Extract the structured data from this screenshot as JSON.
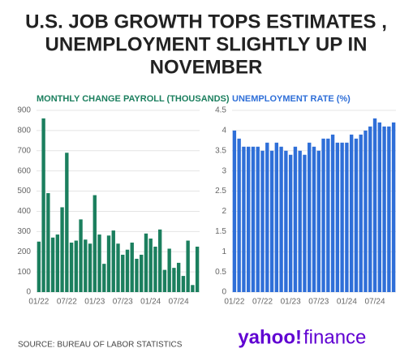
{
  "title_lines": [
    "U.S. JOB GROWTH TOPS ESTIMATES ,",
    "UNEMPLOYMENT SLIGHTLY UP IN",
    "NOVEMBER"
  ],
  "chart_data": [
    {
      "type": "bar",
      "title": "MONTHLY CHANGE PAYROLL (THOUSANDS)",
      "color": "#1b7f5e",
      "title_color": "#1b7f5e",
      "categories": [
        "01/22",
        null,
        null,
        null,
        null,
        null,
        "07/22",
        null,
        null,
        null,
        null,
        null,
        "01/23",
        null,
        null,
        null,
        null,
        null,
        "07/23",
        null,
        null,
        null,
        null,
        null,
        "01/24",
        null,
        null,
        null,
        null,
        null,
        "07/24",
        null,
        null,
        null,
        null
      ],
      "values": [
        250,
        860,
        490,
        270,
        285,
        420,
        690,
        245,
        255,
        360,
        260,
        240,
        480,
        285,
        140,
        280,
        305,
        240,
        185,
        210,
        245,
        165,
        185,
        290,
        265,
        225,
        310,
        110,
        215,
        120,
        145,
        80,
        255,
        35,
        225
      ],
      "ylim": [
        0,
        900
      ],
      "yticks": [
        0,
        100,
        200,
        300,
        400,
        500,
        600,
        700,
        800,
        900
      ],
      "grid": true
    },
    {
      "type": "bar",
      "title": "UNEMPLOYMENT RATE (%)",
      "color": "#2f6fd8",
      "title_color": "#2f6fd8",
      "categories": [
        "01/22",
        null,
        null,
        null,
        null,
        null,
        "07/22",
        null,
        null,
        null,
        null,
        null,
        "01/23",
        null,
        null,
        null,
        null,
        null,
        "07/23",
        null,
        null,
        null,
        null,
        null,
        "01/24",
        null,
        null,
        null,
        null,
        null,
        "07/24",
        null,
        null,
        null,
        null
      ],
      "values": [
        4.0,
        3.8,
        3.6,
        3.6,
        3.6,
        3.6,
        3.5,
        3.7,
        3.5,
        3.7,
        3.6,
        3.5,
        3.4,
        3.6,
        3.5,
        3.4,
        3.7,
        3.6,
        3.5,
        3.8,
        3.8,
        3.9,
        3.7,
        3.7,
        3.7,
        3.9,
        3.8,
        3.9,
        4.0,
        4.1,
        4.3,
        4.2,
        4.1,
        4.1,
        4.2
      ],
      "ylim": [
        0,
        4.5
      ],
      "yticks": [
        0,
        0.5,
        1,
        1.5,
        2,
        2.5,
        3,
        3.5,
        4,
        4.5
      ],
      "grid": true
    }
  ],
  "source": "SOURCE: BUREAU OF LABOR STATISTICS",
  "logo": {
    "name": "yahoo!",
    "product": "finance"
  }
}
